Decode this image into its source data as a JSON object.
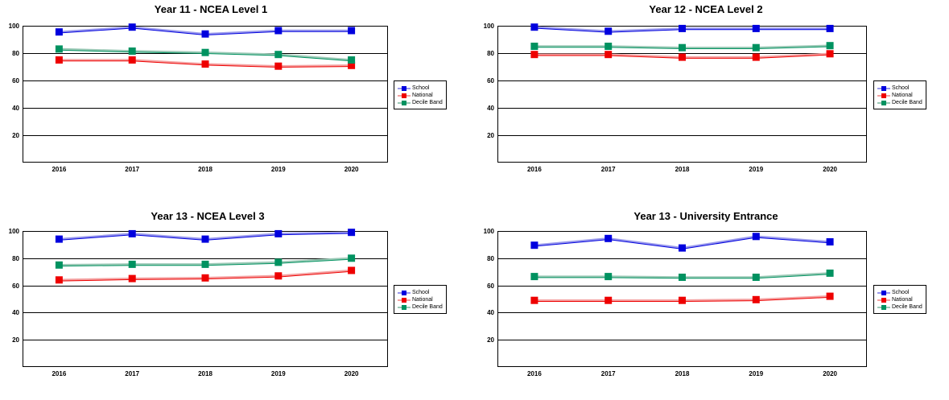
{
  "page": {
    "background": "#ffffff"
  },
  "legend_labels": [
    "School",
    "National",
    "Decile Band"
  ],
  "chart_data": [
    {
      "type": "line",
      "title": "Year 11 - NCEA Level 1",
      "categories": [
        "2016",
        "2017",
        "2018",
        "2019",
        "2020"
      ],
      "y_ticks": [
        20,
        40,
        60,
        80,
        100
      ],
      "ylim": [
        0,
        100
      ],
      "grid": true,
      "legend_position": "right",
      "series": [
        {
          "name": "School",
          "marker_color": "#0000DE",
          "line_color": "#9999EC",
          "values": [
            95.5,
            99,
            94,
            96.5,
            96.5
          ]
        },
        {
          "name": "National",
          "marker_color": "#EE0000",
          "line_color": "#F4A2A2",
          "values": [
            75,
            75,
            72,
            70.5,
            71
          ]
        },
        {
          "name": "Decile Band",
          "marker_color": "#009260",
          "line_color": "#9BC9B6",
          "values": [
            83,
            81.5,
            80.5,
            79,
            75
          ]
        }
      ]
    },
    {
      "type": "line",
      "title": "Year 12 - NCEA Level 2",
      "categories": [
        "2016",
        "2017",
        "2018",
        "2019",
        "2020"
      ],
      "y_ticks": [
        20,
        40,
        60,
        80,
        100
      ],
      "ylim": [
        0,
        100
      ],
      "grid": true,
      "legend_position": "right",
      "series": [
        {
          "name": "School",
          "marker_color": "#0000DE",
          "line_color": "#9999EC",
          "values": [
            99,
            96,
            98,
            98,
            98
          ]
        },
        {
          "name": "National",
          "marker_color": "#EE0000",
          "line_color": "#F4A2A2",
          "values": [
            79,
            79,
            77,
            77,
            79.5
          ]
        },
        {
          "name": "Decile Band",
          "marker_color": "#009260",
          "line_color": "#9BC9B6",
          "values": [
            85,
            85,
            84,
            84,
            85.5
          ]
        }
      ]
    },
    {
      "type": "line",
      "title": "Year 13 - NCEA Level 3",
      "categories": [
        "2016",
        "2017",
        "2018",
        "2019",
        "2020"
      ],
      "y_ticks": [
        20,
        40,
        60,
        80,
        100
      ],
      "ylim": [
        0,
        100
      ],
      "grid": true,
      "legend_position": "right",
      "series": [
        {
          "name": "School",
          "marker_color": "#0000DE",
          "line_color": "#9999EC",
          "values": [
            94,
            98,
            94,
            98,
            99
          ]
        },
        {
          "name": "National",
          "marker_color": "#EE0000",
          "line_color": "#F4A2A2",
          "values": [
            64,
            65,
            65.5,
            67,
            71
          ]
        },
        {
          "name": "Decile Band",
          "marker_color": "#009260",
          "line_color": "#9BC9B6",
          "values": [
            75,
            75.5,
            75.5,
            77,
            80
          ]
        }
      ]
    },
    {
      "type": "line",
      "title": "Year 13 - University Entrance",
      "categories": [
        "2016",
        "2017",
        "2018",
        "2019",
        "2020"
      ],
      "y_ticks": [
        20,
        40,
        60,
        80,
        100
      ],
      "ylim": [
        0,
        100
      ],
      "grid": true,
      "legend_position": "right",
      "series": [
        {
          "name": "School",
          "marker_color": "#0000DE",
          "line_color": "#9999EC",
          "values": [
            89.5,
            94.5,
            87.5,
            96,
            92
          ]
        },
        {
          "name": "National",
          "marker_color": "#EE0000",
          "line_color": "#F4A2A2",
          "values": [
            49,
            49,
            49,
            49.5,
            52
          ]
        },
        {
          "name": "Decile Band",
          "marker_color": "#009260",
          "line_color": "#9BC9B6",
          "values": [
            66.5,
            66.5,
            66,
            66,
            69
          ]
        }
      ]
    }
  ]
}
